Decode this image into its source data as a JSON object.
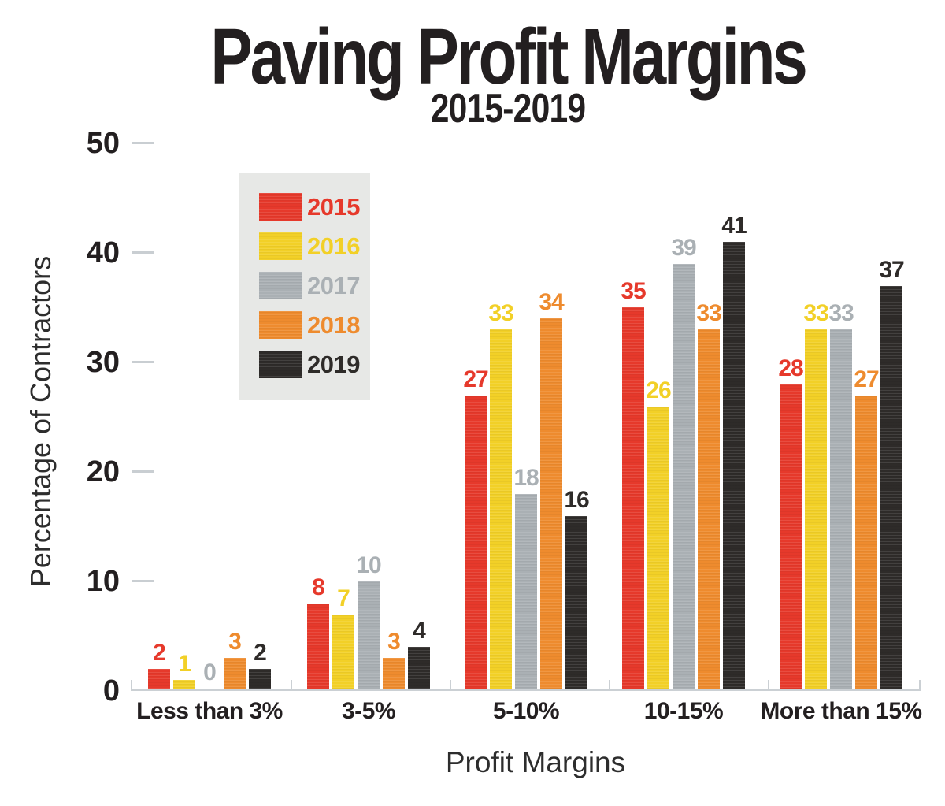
{
  "chart_data": {
    "type": "bar",
    "title": "Paving Profit Margins",
    "subtitle": "2015-2019",
    "xlabel": "Profit Margins",
    "ylabel": "Percentage of Contractors",
    "ylim": [
      0,
      50
    ],
    "yticks": [
      0,
      10,
      20,
      30,
      40,
      50
    ],
    "grid": false,
    "legend_position": "upper-left-inside",
    "bar_value_labels": true,
    "categories": [
      "Less than 3%",
      "3-5%",
      "5-10%",
      "10-15%",
      "More than 15%"
    ],
    "series": [
      {
        "name": "2015",
        "color": "#e6392b",
        "values": [
          2,
          8,
          27,
          35,
          28
        ]
      },
      {
        "name": "2016",
        "color": "#f2d027",
        "values": [
          1,
          7,
          33,
          26,
          33
        ]
      },
      {
        "name": "2017",
        "color": "#aab0b4",
        "values": [
          0,
          10,
          18,
          39,
          33
        ]
      },
      {
        "name": "2018",
        "color": "#ee8b2e",
        "values": [
          3,
          3,
          34,
          33,
          27
        ]
      },
      {
        "name": "2019",
        "color": "#2e2b29",
        "values": [
          2,
          4,
          16,
          41,
          37
        ]
      }
    ]
  },
  "palette": {
    "background": "#ffffff",
    "axis_line": "#cbd0d4",
    "text": "#231f20",
    "legend_background": "#e7e8e6"
  }
}
